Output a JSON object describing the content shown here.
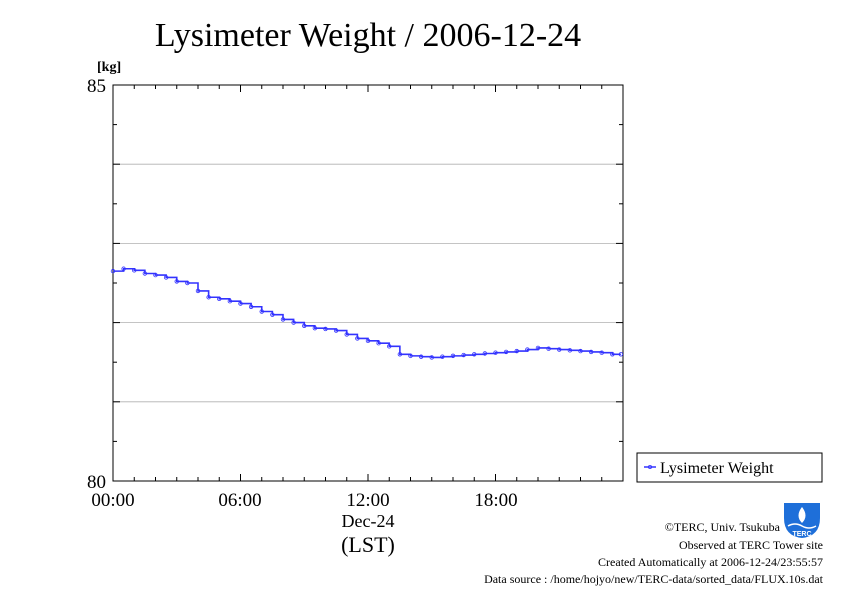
{
  "header": {
    "title": "Lysimeter Weight / 2006-12-24"
  },
  "axes": {
    "y_unit": "[kg]",
    "y_ticks": [
      "80",
      "85"
    ],
    "x_ticks": [
      "00:00",
      "06:00",
      "12:00",
      "18:00"
    ],
    "x_date": "Dec-24",
    "x_timezone": "(LST)"
  },
  "legend": {
    "label": "Lysimeter Weight"
  },
  "footer": {
    "copyright": "©TERC, Univ. Tsukuba",
    "observed": "Observed at TERC Tower site",
    "created": "Created Automatically at 2006-12-24/23:55:57",
    "source": "Data source : /home/hojyo/new/TERC-data/sorted_data/FLUX.10s.dat"
  },
  "logo": {
    "text": "TERC"
  },
  "colors": {
    "series": "#3333ff",
    "grid": "#b0b0b0",
    "logo": "#1e6fd9"
  },
  "chart_data": {
    "type": "line",
    "title": "Lysimeter Weight / 2006-12-24",
    "ylabel": "[kg]",
    "xlabel": "Dec-24 (LST)",
    "ylim": [
      80,
      85
    ],
    "xlim_hours": [
      0,
      24
    ],
    "grid": "horizontal",
    "legend_position": "right",
    "series": [
      {
        "name": "Lysimeter Weight",
        "x_hours": [
          0.0,
          0.5,
          1.0,
          1.5,
          2.0,
          2.5,
          3.0,
          3.5,
          4.0,
          4.5,
          5.0,
          5.5,
          6.0,
          6.5,
          7.0,
          7.5,
          8.0,
          8.5,
          9.0,
          9.5,
          10.0,
          10.5,
          11.0,
          11.5,
          12.0,
          12.5,
          13.0,
          13.5,
          14.0,
          14.5,
          15.0,
          15.5,
          16.0,
          16.5,
          17.0,
          17.5,
          18.0,
          18.5,
          19.0,
          19.5,
          20.0,
          20.5,
          21.0,
          21.5,
          22.0,
          22.5,
          23.0,
          23.5,
          23.9
        ],
        "values": [
          82.65,
          82.68,
          82.66,
          82.62,
          82.6,
          82.57,
          82.52,
          82.5,
          82.4,
          82.32,
          82.3,
          82.27,
          82.24,
          82.2,
          82.14,
          82.1,
          82.04,
          82.0,
          81.96,
          81.93,
          81.92,
          81.9,
          81.85,
          81.8,
          81.77,
          81.74,
          81.7,
          81.6,
          81.58,
          81.57,
          81.56,
          81.57,
          81.58,
          81.59,
          81.6,
          81.61,
          81.62,
          81.63,
          81.64,
          81.66,
          81.68,
          81.67,
          81.66,
          81.65,
          81.64,
          81.63,
          81.62,
          81.6,
          81.6
        ]
      }
    ]
  }
}
